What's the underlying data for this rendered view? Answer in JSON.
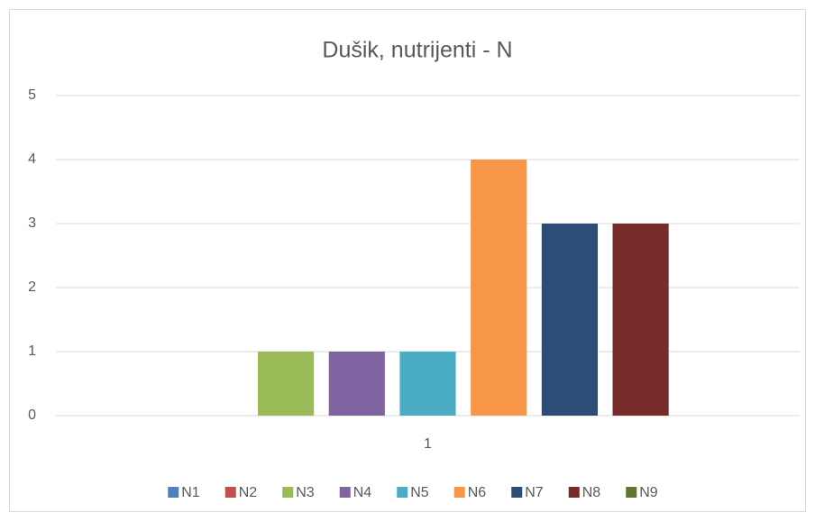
{
  "chart_data": {
    "type": "bar",
    "title": "Dušik, nutrijenti - N",
    "categories": [
      "1"
    ],
    "series": [
      {
        "name": "N1",
        "color": "#4f81bd",
        "values": [
          0
        ]
      },
      {
        "name": "N2",
        "color": "#c0504d",
        "values": [
          0
        ]
      },
      {
        "name": "N3",
        "color": "#9bbb59",
        "values": [
          1
        ]
      },
      {
        "name": "N4",
        "color": "#8064a2",
        "values": [
          1
        ]
      },
      {
        "name": "N5",
        "color": "#4bacc6",
        "values": [
          1
        ]
      },
      {
        "name": "N6",
        "color": "#f79646",
        "values": [
          4
        ]
      },
      {
        "name": "N7",
        "color": "#2c4d75",
        "values": [
          3
        ]
      },
      {
        "name": "N8",
        "color": "#772c2a",
        "values": [
          3
        ]
      },
      {
        "name": "N9",
        "color": "#5f7530",
        "values": [
          0
        ]
      }
    ],
    "ylim": [
      0,
      5
    ],
    "yticks": [
      0,
      1,
      2,
      3,
      4,
      5
    ],
    "grid": true,
    "legend": "bottom"
  }
}
